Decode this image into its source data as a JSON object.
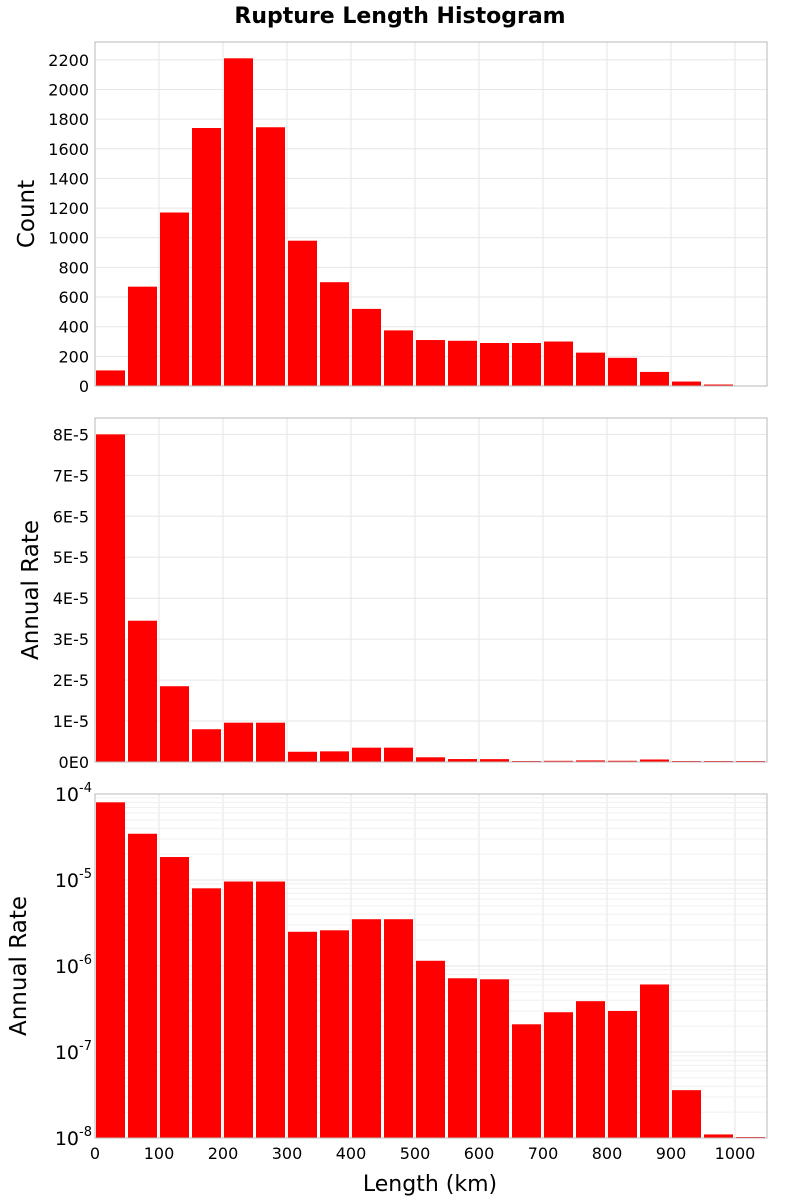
{
  "chart_data": {
    "title": "Rupture Length Histogram",
    "xlabel": "Length (km)",
    "xlim": [
      0,
      1050
    ],
    "x_ticks": [
      0,
      100,
      200,
      300,
      400,
      500,
      600,
      700,
      800,
      900,
      1000
    ],
    "bin_width": 50,
    "bar_color": "#ff0000",
    "bin_centers": [
      25,
      75,
      125,
      175,
      225,
      275,
      325,
      375,
      425,
      475,
      525,
      575,
      625,
      675,
      725,
      775,
      825,
      875,
      925,
      975,
      1025
    ],
    "panels": [
      {
        "type": "bar",
        "ylabel": "Count",
        "yscale": "linear",
        "ylim": [
          0,
          2320
        ],
        "y_ticks": [
          0,
          200,
          400,
          600,
          800,
          1000,
          1200,
          1400,
          1600,
          1800,
          2000,
          2200
        ],
        "y_tick_labels": [
          "0",
          "200",
          "400",
          "600",
          "800",
          "1000",
          "1200",
          "1400",
          "1600",
          "1800",
          "2000",
          "2200"
        ],
        "values": [
          105,
          670,
          1170,
          1740,
          2210,
          1745,
          980,
          700,
          520,
          375,
          310,
          305,
          290,
          290,
          300,
          225,
          190,
          95,
          30,
          10,
          0
        ]
      },
      {
        "type": "bar",
        "ylabel": "Annual Rate",
        "yscale": "linear",
        "ylim": [
          0,
          8.4e-05
        ],
        "y_ticks": [
          0,
          1e-05,
          2e-05,
          3e-05,
          4e-05,
          5e-05,
          6e-05,
          7e-05,
          8e-05
        ],
        "y_tick_labels": [
          "0E0",
          "1E-5",
          "2E-5",
          "3E-5",
          "4E-5",
          "5E-5",
          "6E-5",
          "7E-5",
          "8E-5"
        ],
        "values": [
          8e-05,
          3.45e-05,
          1.85e-05,
          8e-06,
          9.6e-06,
          9.6e-06,
          2.5e-06,
          2.6e-06,
          3.5e-06,
          3.5e-06,
          1.15e-06,
          7.2e-07,
          7e-07,
          2.1e-07,
          2.9e-07,
          3.9e-07,
          3e-07,
          6.1e-07,
          3.6e-08,
          1.1e-08,
          1e-08
        ]
      },
      {
        "type": "bar",
        "ylabel": "Annual Rate",
        "yscale": "log",
        "ylim": [
          1e-08,
          0.0001
        ],
        "y_ticks": [
          1e-08,
          1e-07,
          1e-06,
          1e-05,
          0.0001
        ],
        "y_tick_labels": [
          {
            "base": "10",
            "exp": "-8"
          },
          {
            "base": "10",
            "exp": "-7"
          },
          {
            "base": "10",
            "exp": "-6"
          },
          {
            "base": "10",
            "exp": "-5"
          },
          {
            "base": "10",
            "exp": "-4"
          }
        ],
        "values": [
          8e-05,
          3.45e-05,
          1.85e-05,
          8e-06,
          9.6e-06,
          9.6e-06,
          2.5e-06,
          2.6e-06,
          3.5e-06,
          3.5e-06,
          1.15e-06,
          7.2e-07,
          7e-07,
          2.1e-07,
          2.9e-07,
          3.9e-07,
          3e-07,
          6.1e-07,
          3.6e-08,
          1.1e-08,
          1e-08
        ]
      }
    ]
  }
}
